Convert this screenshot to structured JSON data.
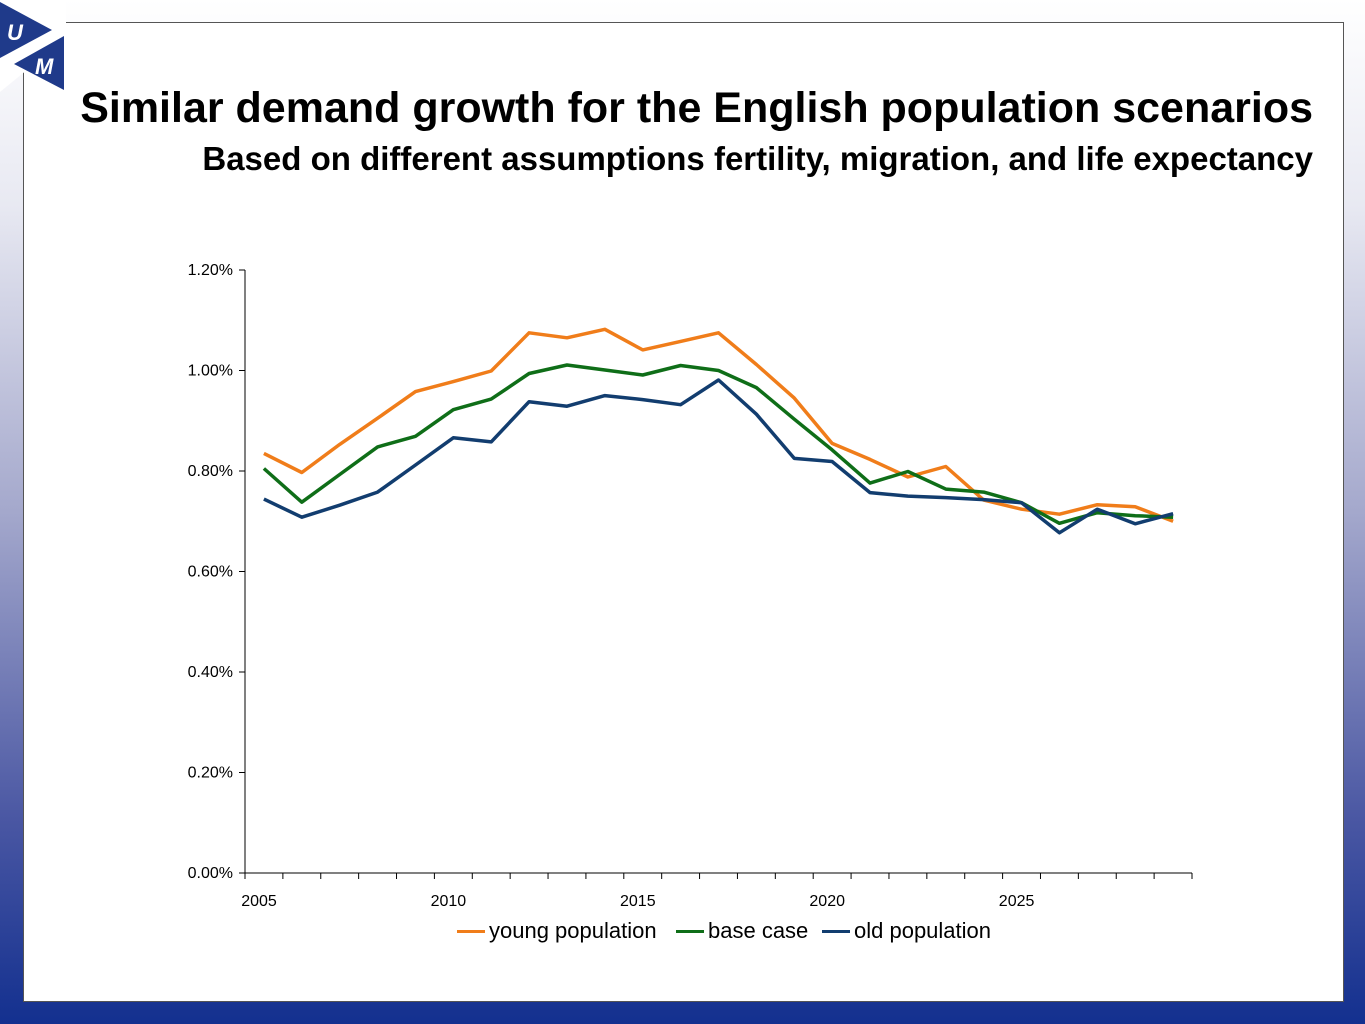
{
  "slide": {
    "title": "Similar demand growth for the English population scenarios",
    "subtitle": "Based on different assumptions fertility, migration, and life expectancy",
    "logo": {
      "letter_top": "U",
      "letter_bottom": "M",
      "color": "#1f3a8a"
    }
  },
  "chart_data": {
    "type": "line",
    "title": "",
    "xlabel": "",
    "ylabel": "",
    "x": [
      2005,
      2006,
      2007,
      2008,
      2009,
      2010,
      2011,
      2012,
      2013,
      2014,
      2015,
      2016,
      2017,
      2018,
      2019,
      2020,
      2021,
      2022,
      2023,
      2024,
      2025,
      2026,
      2027,
      2028,
      2029
    ],
    "x_ticks": [
      "2005",
      "2010",
      "2015",
      "2020",
      "2025"
    ],
    "y_ticks": [
      "0.00%",
      "0.20%",
      "0.40%",
      "0.60%",
      "0.80%",
      "1.00%",
      "1.20%"
    ],
    "ylim": [
      0,
      1.2
    ],
    "y_unit": "%",
    "grid": false,
    "legend_position": "bottom",
    "series": [
      {
        "name": "young population",
        "color": "#f07d1a",
        "values": [
          0.835,
          0.797,
          0.853,
          0.905,
          0.958,
          0.978,
          0.999,
          1.075,
          1.065,
          1.082,
          1.041,
          1.058,
          1.075,
          1.012,
          0.945,
          0.855,
          0.823,
          0.788,
          0.809,
          0.742,
          0.724,
          0.714,
          0.733,
          0.729,
          0.7
        ]
      },
      {
        "name": "base case",
        "color": "#0f6e18",
        "values": [
          0.805,
          0.738,
          0.793,
          0.848,
          0.869,
          0.922,
          0.943,
          0.994,
          1.011,
          1.001,
          0.991,
          1.01,
          1.0,
          0.966,
          0.903,
          0.842,
          0.776,
          0.799,
          0.764,
          0.758,
          0.737,
          0.696,
          0.717,
          0.711,
          0.708
        ]
      },
      {
        "name": "old population",
        "color": "#123d6f",
        "values": [
          0.744,
          0.708,
          0.732,
          0.758,
          0.812,
          0.866,
          0.858,
          0.938,
          0.929,
          0.95,
          0.942,
          0.932,
          0.981,
          0.913,
          0.825,
          0.819,
          0.757,
          0.75,
          0.747,
          0.743,
          0.737,
          0.677,
          0.724,
          0.695,
          0.715
        ]
      }
    ]
  }
}
